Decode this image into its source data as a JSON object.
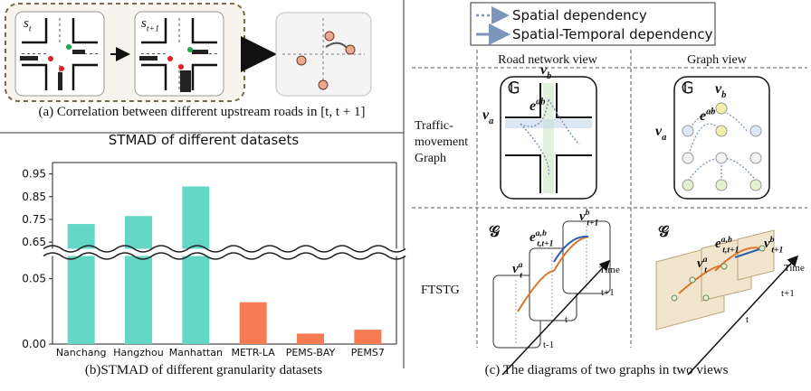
{
  "panel_a": {
    "caption": "(a) Correlation between different upstream roads in [t, t + 1]",
    "state_labels": [
      {
        "base": "s",
        "sub": "t"
      },
      {
        "base": "s",
        "sub": "t+1"
      }
    ]
  },
  "chart_data": {
    "type": "bar",
    "title": "STMAD of different datasets",
    "categories": [
      "Nanchang",
      "Hangzhou",
      "Manhattan",
      "METR-LA",
      "PEMS-BAY",
      "PEMS7"
    ],
    "values": [
      0.73,
      0.765,
      0.895,
      0.032,
      0.008,
      0.011
    ],
    "colors": [
      "#63d6c5",
      "#63d6c5",
      "#63d6c5",
      "#f77b52",
      "#f77b52",
      "#f77b52"
    ],
    "ylim": [
      0,
      1.0
    ],
    "ybreak": [
      0.065,
      0.635
    ],
    "yticks": [
      {
        "value": 0,
        "label": "0.00"
      },
      0.05,
      0.65,
      0.75,
      0.85,
      0.95
    ]
  },
  "panel_b": {
    "caption": "(b)STMAD of different granularity datasets"
  },
  "panel_c": {
    "legend": [
      "Spatial dependency",
      "Spatial-Temporal dependency"
    ],
    "columns": [
      "Road network view",
      "Graph view"
    ],
    "rows": [
      {
        "label_lines": [
          "Traffic-",
          "movement",
          "Graph"
        ]
      },
      {
        "label_lines": [
          "FTSTG"
        ]
      }
    ],
    "road_view": {
      "graph": {
        "base": "𝔾"
      },
      "vb": {
        "base": "v",
        "sub": "b"
      },
      "va": {
        "base": "v",
        "sub": "a"
      },
      "eab": {
        "base": "e",
        "sup": "ab"
      }
    },
    "graph_view": {
      "graph": {
        "base": "𝔾"
      },
      "vb": {
        "base": "v",
        "sub": "b"
      },
      "va": {
        "base": "v",
        "sub": "a"
      },
      "eab": {
        "base": "e",
        "sup": "ab"
      }
    },
    "ftstg_road": {
      "graph": {
        "base": "𝒢"
      },
      "va": {
        "base": "v",
        "sup": "a",
        "sub": "t"
      },
      "eab": {
        "base": "e",
        "sup": "a,b",
        "sub": "t,t+1"
      },
      "vb": {
        "base": "v",
        "sup": "b",
        "sub": "t+1"
      },
      "time": "Time",
      "times": [
        "t+1",
        "t",
        "t-1"
      ]
    },
    "ftstg_graph": {
      "graph": {
        "base": "𝒢"
      },
      "va": {
        "base": "v",
        "sup": "a",
        "sub": "t"
      },
      "eab": {
        "base": "e",
        "sup": "a,b",
        "sub": "t,t+1"
      },
      "vb": {
        "base": "v",
        "sup": "b",
        "sub": "t+1"
      },
      "time": "Time",
      "times": [
        "t+1",
        "t"
      ]
    },
    "caption": "(c) The diagrams of two graphs in two views"
  }
}
